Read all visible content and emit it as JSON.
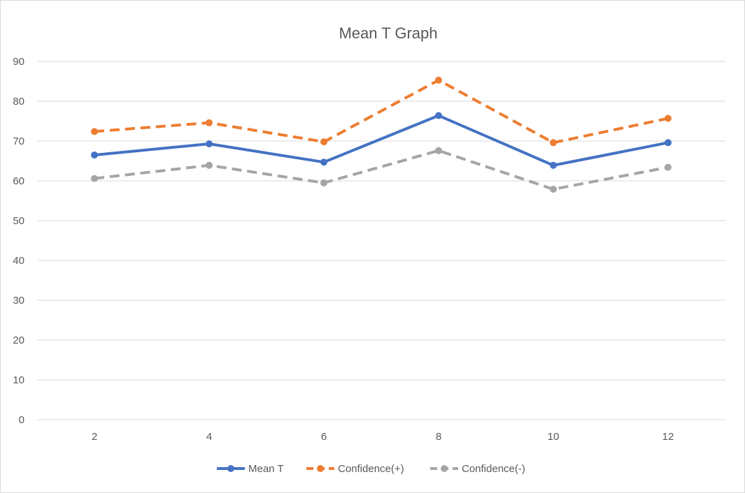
{
  "chart_data": {
    "type": "line",
    "title": "Mean T Graph",
    "xlabel": "",
    "ylabel": "",
    "categories": [
      "2",
      "4",
      "6",
      "8",
      "10",
      "12"
    ],
    "ylim": [
      0,
      90
    ],
    "yticks": [
      0,
      10,
      20,
      30,
      40,
      50,
      60,
      70,
      80,
      90
    ],
    "grid": true,
    "legend_position": "bottom",
    "series": [
      {
        "name": "Mean T",
        "values": [
          66.5,
          69.3,
          64.7,
          76.4,
          63.9,
          69.6
        ],
        "color": "#4472c4",
        "dash": "solid"
      },
      {
        "name": "Confidence(+)",
        "values": [
          72.4,
          74.6,
          69.8,
          85.3,
          69.6,
          75.7
        ],
        "color": "#ed7d31",
        "dash": "dashed"
      },
      {
        "name": "Confidence(-)",
        "values": [
          60.6,
          63.9,
          59.5,
          67.6,
          57.9,
          63.4
        ],
        "color": "#a5a5a5",
        "dash": "dashed"
      }
    ]
  }
}
